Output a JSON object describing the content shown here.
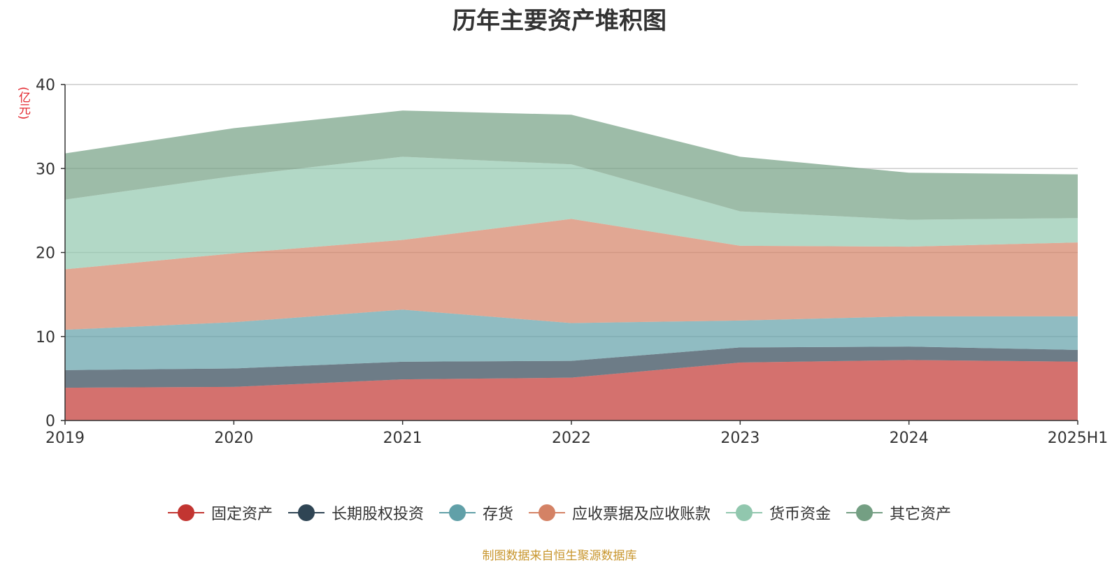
{
  "chart_data": {
    "type": "area",
    "stacked": true,
    "title": "历年主要资产堆积图",
    "unit_label": "(亿元)",
    "categories": [
      "2019",
      "2020",
      "2021",
      "2022",
      "2023",
      "2024",
      "2025H1"
    ],
    "ylim": [
      0,
      40
    ],
    "y_ticks": [
      "0",
      "10",
      "20",
      "30",
      "40"
    ],
    "grid": true,
    "legend_position": "bottom",
    "series": [
      {
        "name": "固定资产",
        "values": [
          3.9,
          4.0,
          4.9,
          5.1,
          6.9,
          7.2,
          7.0
        ],
        "color": "#c23531"
      },
      {
        "name": "长期股权投资",
        "values": [
          2.1,
          2.2,
          2.1,
          2.0,
          1.8,
          1.6,
          1.4
        ],
        "color": "#2f4554"
      },
      {
        "name": "存货",
        "values": [
          4.8,
          5.5,
          6.2,
          4.5,
          3.2,
          3.6,
          4.0
        ],
        "color": "#61a0a8"
      },
      {
        "name": "应收票据及应收账款",
        "values": [
          7.2,
          8.2,
          8.3,
          12.4,
          8.9,
          8.3,
          8.8
        ],
        "color": "#d48265"
      },
      {
        "name": "货币资金",
        "values": [
          8.3,
          9.2,
          9.9,
          6.5,
          4.1,
          3.2,
          2.9
        ],
        "color": "#91c7ae"
      },
      {
        "name": "其它资产",
        "values": [
          5.5,
          5.7,
          5.5,
          5.9,
          6.5,
          5.6,
          5.2
        ],
        "color": "#749f83"
      }
    ],
    "source_note": "制图数据来自恒生聚源数据库"
  }
}
